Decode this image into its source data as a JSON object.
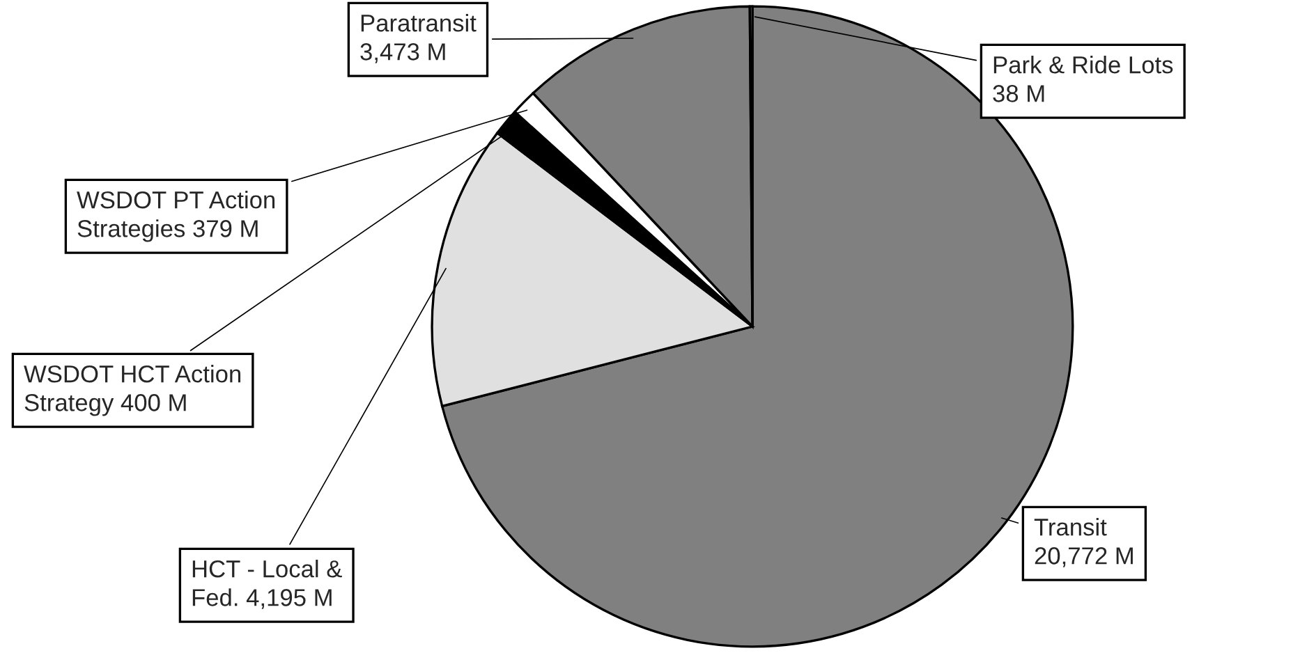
{
  "chart_data": {
    "type": "pie",
    "categories": [
      "Transit\n20,772 M",
      "HCT - Local &\nFed. 4,195 M",
      "WSDOT HCT Action\nStrategy 400 M",
      "WSDOT PT Action\nStrategies 379 M",
      "Paratransit\n3,473 M",
      "Park & Ride Lots\n38 M"
    ],
    "values": [
      20772,
      4195,
      400,
      379,
      3473,
      38
    ],
    "colors": [
      "#808080",
      "#e0e0e0",
      "#000000",
      "#ffffff",
      "#808080",
      "#c0c0c0"
    ],
    "legend": false
  }
}
